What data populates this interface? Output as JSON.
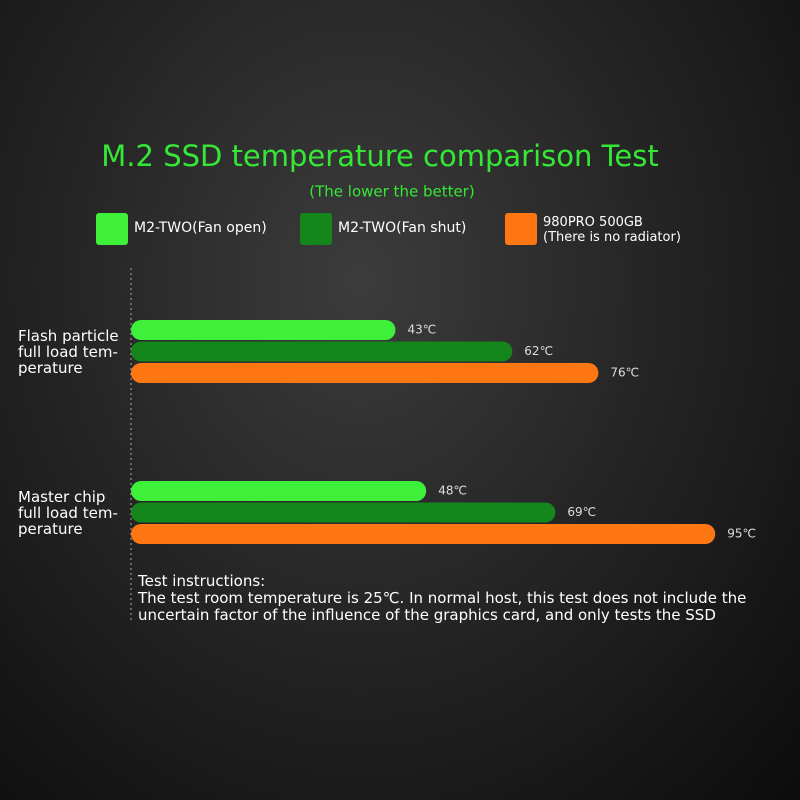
{
  "chart_data": {
    "type": "bar",
    "orientation": "horizontal",
    "title": "M.2 SSD temperature comparison Test",
    "subtitle": "(The lower the better)",
    "categories": [
      "Flash particle\nfull load tem-\nperature",
      "Master chip\nfull load tem-\nperature"
    ],
    "series": [
      {
        "name": "M2-TWO(Fan open)",
        "color": "#3ef03a",
        "values": [
          43,
          48
        ],
        "value_labels": [
          "43℃",
          "48℃"
        ]
      },
      {
        "name": "M2-TWO(Fan shut)",
        "color": "#15861b",
        "values": [
          62,
          69
        ],
        "value_labels": [
          "62℃",
          "69℃"
        ]
      },
      {
        "name": "980PRO 500GB\n(There is no radiator)",
        "color": "#ff7712",
        "values": [
          76,
          95
        ],
        "value_labels": [
          "76℃",
          "95℃"
        ]
      }
    ],
    "annotations": [
      "Test instructions:",
      "The test room temperature is 25℃. In normal host, this test does not include the uncertain factor of the influence of the graphics card, and only tests the SSD"
    ]
  }
}
